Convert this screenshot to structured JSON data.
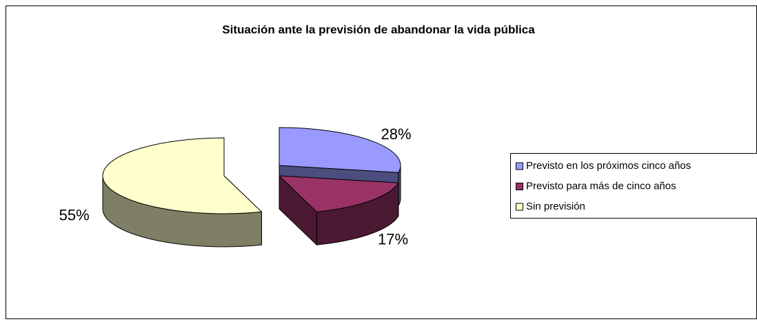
{
  "chart_data": {
    "type": "pie",
    "title": "Situación ante la previsión de abandonar la vida pública",
    "categories": [
      "Previsto en los próximos cinco años",
      "Previsto para más de cinco años",
      "Sin previsión"
    ],
    "values": [
      28,
      17,
      55
    ],
    "value_labels": [
      "28%",
      "17%",
      "55%"
    ],
    "colors": [
      "#9999ff",
      "#993366",
      "#ffffcc"
    ],
    "legend": "right"
  }
}
